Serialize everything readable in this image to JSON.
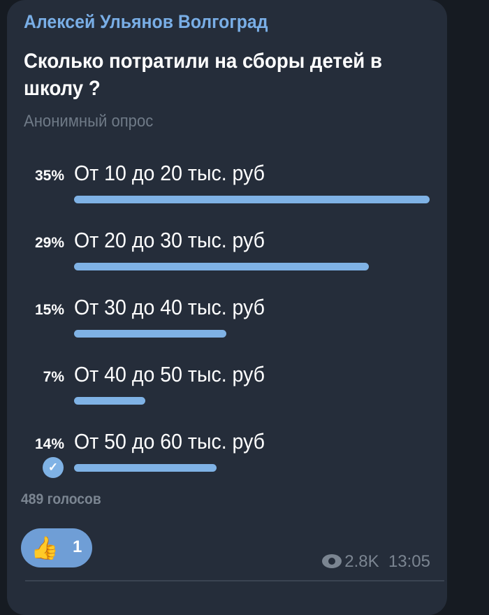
{
  "message": {
    "author": "Алексей Ульянов Волгоград",
    "question": "Сколько потратили на сборы детей в школу ?",
    "poll_type": "Анонимный опрос",
    "options": [
      {
        "percent_label": "35%",
        "percent": 35,
        "label": "От 10 до 20 тыс. руб",
        "selected": false
      },
      {
        "percent_label": "29%",
        "percent": 29,
        "label": "От 20 до 30 тыс. руб",
        "selected": false
      },
      {
        "percent_label": "15%",
        "percent": 15,
        "label": "От 30 до 40 тыс. руб",
        "selected": false
      },
      {
        "percent_label": "7%",
        "percent": 7,
        "label": "От 40 до 50 тыс. руб",
        "selected": false
      },
      {
        "percent_label": "14%",
        "percent": 14,
        "label": "От 50 до 60 тыс. руб",
        "selected": true
      }
    ],
    "votes": "489 голосов",
    "reaction": {
      "emoji": "👍",
      "count": "1"
    },
    "views": "2.8K",
    "time": "13:05"
  },
  "colors": {
    "accent": "#7fb2e5",
    "bubble": "#252d3a",
    "background": "#161b22"
  }
}
